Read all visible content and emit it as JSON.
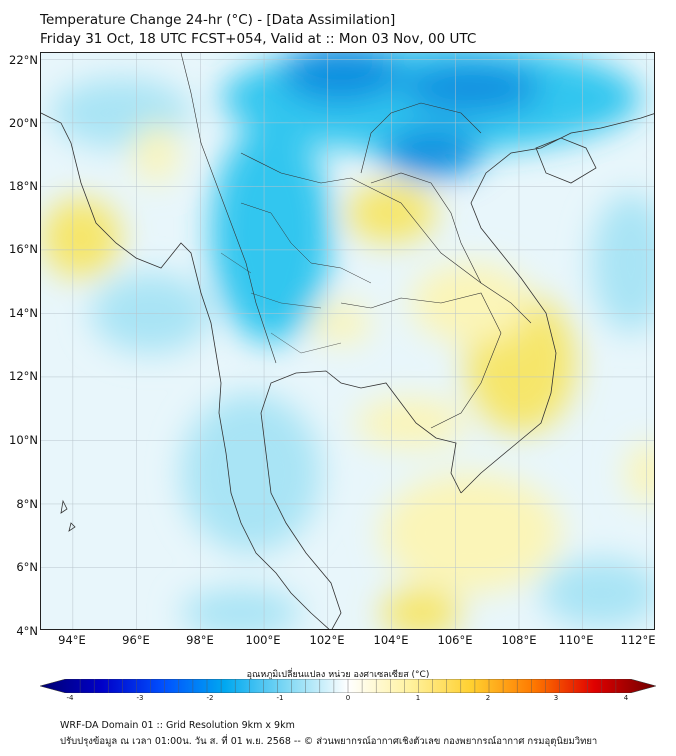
{
  "header": {
    "title_line1": "Temperature Change 24-hr (°C) - [Data Assimilation]",
    "title_line2": "Friday 31 Oct, 18 UTC FCST+054, Valid at :: Mon 03 Nov, 00 UTC"
  },
  "map": {
    "lat_labels": [
      "22°N",
      "20°N",
      "18°N",
      "16°N",
      "14°N",
      "12°N",
      "10°N",
      "8°N",
      "6°N",
      "4°N"
    ],
    "lon_labels": [
      "94°E",
      "96°E",
      "98°E",
      "100°E",
      "102°E",
      "104°E",
      "106°E",
      "108°E",
      "110°E",
      "112°E"
    ],
    "lon_range": [
      93,
      112.3
    ],
    "lat_range": [
      4,
      22.2
    ],
    "grid": true,
    "field_colors": {
      "neutral": "#e8f6fb",
      "light_blue": "#a9e4f5",
      "cyan": "#33c6ef",
      "deep_blue": "#0a8fe0",
      "light_yellow": "#fbf5b8",
      "yellow": "#f6e66a"
    }
  },
  "colorbar": {
    "title": "อุณหภูมิเปลี่ยนแปลง หน่วย องศาเซลเซียส (°C)",
    "ticks": [
      "-4",
      "-3",
      "-2",
      "-1",
      "0",
      "1",
      "2",
      "3",
      "4"
    ],
    "range": [
      -4,
      4
    ],
    "colors": [
      "#000070",
      "#0000c8",
      "#0050ff",
      "#00a8f0",
      "#7fd8f4",
      "#ffffff",
      "#fff2a0",
      "#ffd030",
      "#ff7a00",
      "#e00000",
      "#6e0000"
    ]
  },
  "footer": {
    "line1": "WRF-DA Domain 01 :: Grid Resolution 9km x 9km",
    "line2": "ปรับปรุงข้อมูล ณ เวลา 01:00น. วัน ส. ที่ 01 พ.ย. 2568 -- © ส่วนพยากรณ์อากาศเชิงตัวเลข กองพยากรณ์อากาศ กรมอุตุนิยมวิทยา"
  }
}
